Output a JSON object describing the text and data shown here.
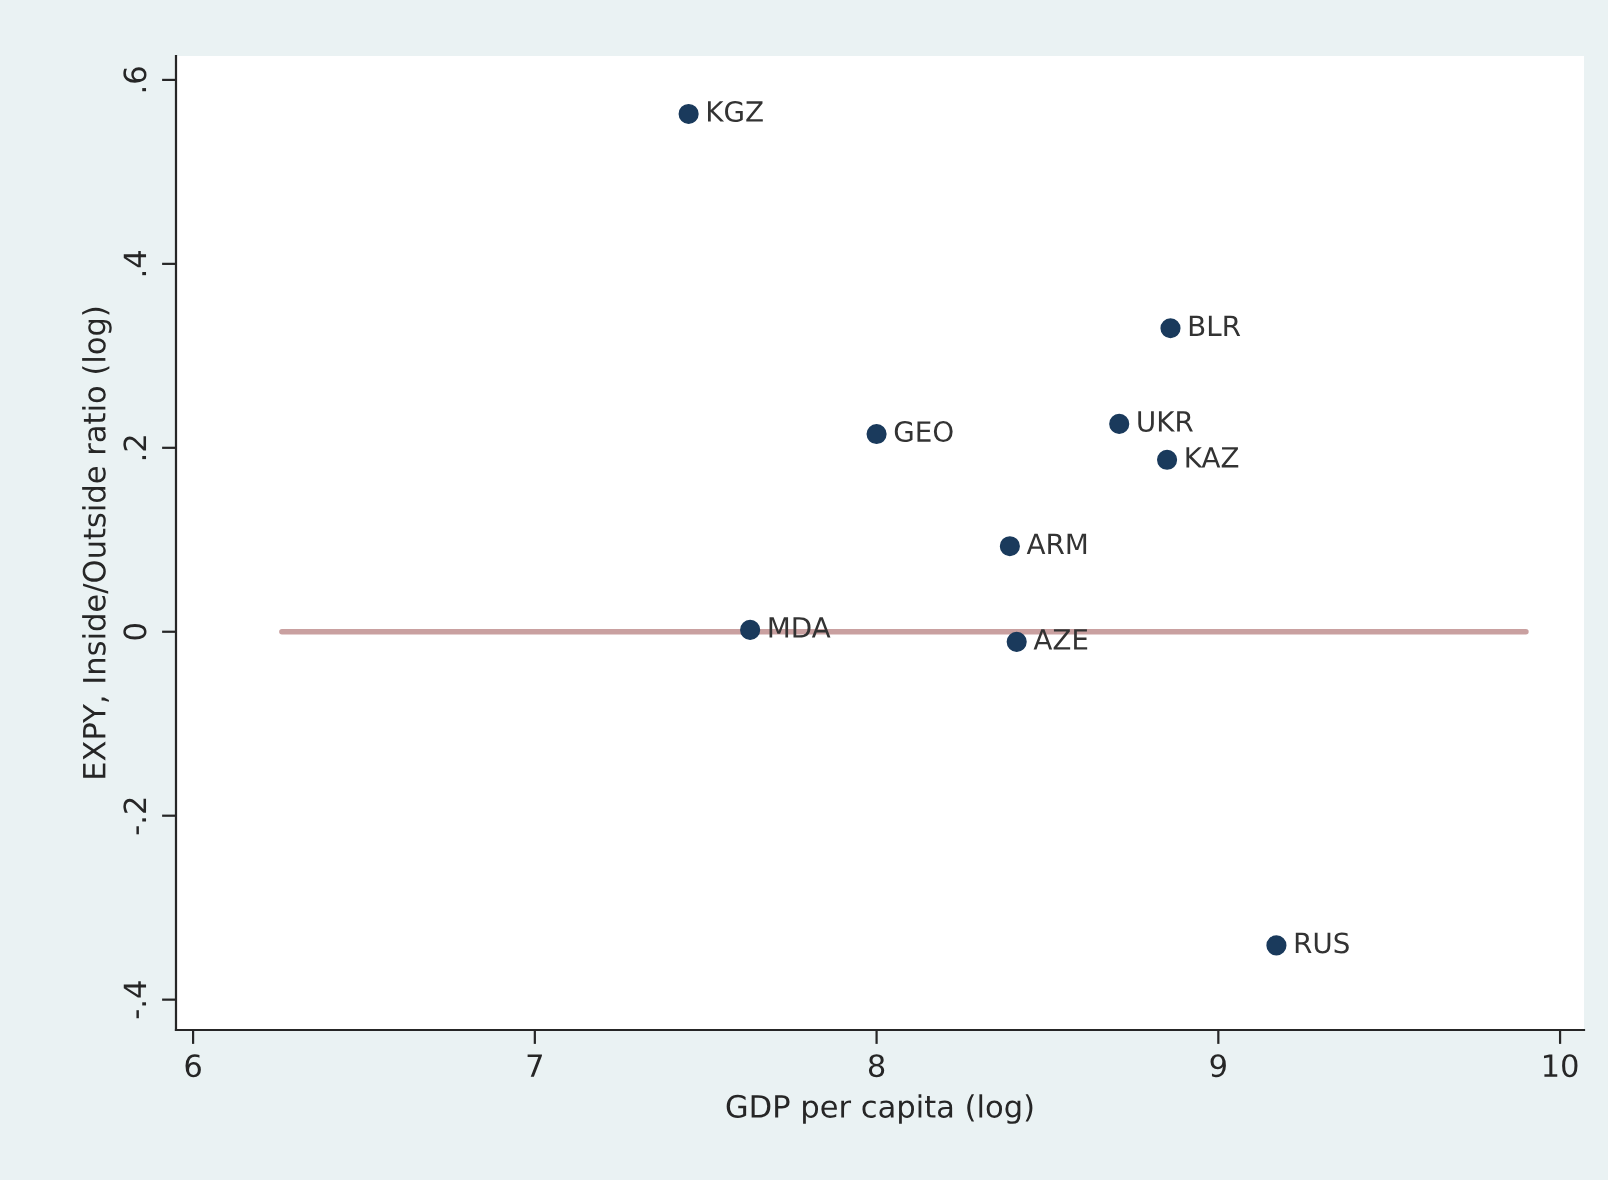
{
  "chart_data": {
    "type": "scatter",
    "xlabel": "GDP per capita (log)",
    "ylabel": "EXPY, Inside/Outside ratio (log)",
    "xlim": [
      5.95,
      10.07
    ],
    "ylim": [
      -0.433,
      0.626
    ],
    "xticks": [
      6,
      7,
      8,
      9,
      10
    ],
    "yticks": [
      {
        "value": 0.6,
        "label": ".6"
      },
      {
        "value": 0.4,
        "label": ".4"
      },
      {
        "value": 0.2,
        "label": ".2"
      },
      0,
      {
        "value": -0.2,
        "label": "-.2"
      },
      {
        "value": -0.4,
        "label": "-.4"
      }
    ],
    "grid": false,
    "legend": false,
    "marker": "circle",
    "series": [
      {
        "color": "#1a3a5c",
        "x": [
          7.45,
          8.86,
          8.0,
          8.71,
          8.85,
          8.39,
          7.63,
          8.41,
          9.17
        ],
        "values": [
          0.563,
          0.33,
          0.215,
          0.226,
          0.187,
          0.093,
          0.002,
          -0.011,
          -0.341
        ],
        "value_labels": [
          "KGZ",
          "BLR",
          "GEO",
          "UKR",
          "KAZ",
          "ARM",
          "MDA",
          "AZE",
          "RUS"
        ]
      },
      {
        "type": "line",
        "color": "#c9a0a0",
        "x": [
          6.26,
          9.9
        ],
        "values": [
          0,
          0
        ],
        "marker": "none"
      }
    ]
  }
}
